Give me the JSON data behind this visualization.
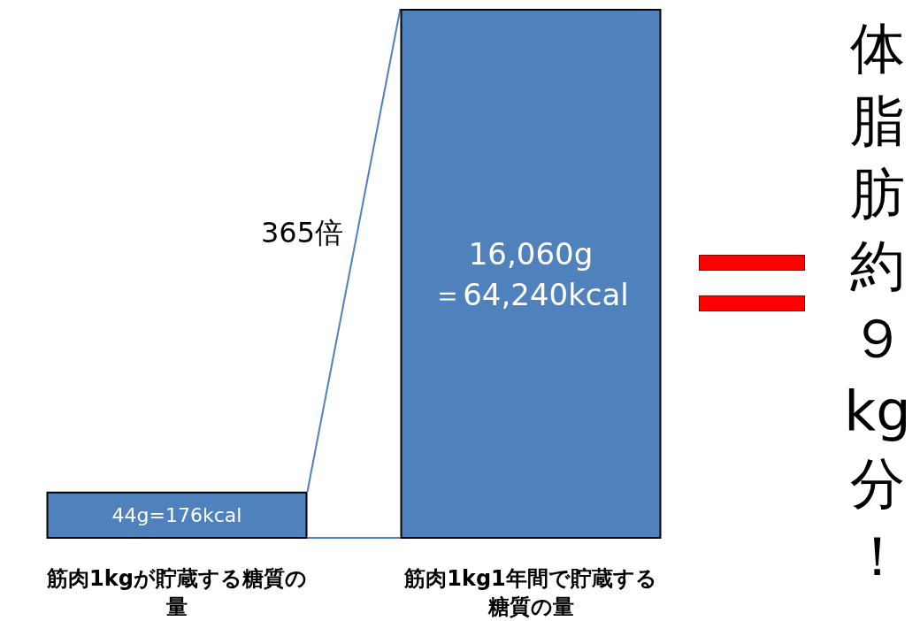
{
  "chart_data": {
    "type": "bar",
    "log": true,
    "tick_labels": "x",
    "categories": [
      "筋肉1kgが貯蔵する糖質の量",
      "筋肉1kg1年間で貯蔵する糖質の量"
    ],
    "values": [
      44,
      16060
    ],
    "ylim": [
      25,
      16060
    ],
    "value_labels": [
      "44g=176kcal",
      "16,060g\n＝64,240kcal"
    ],
    "color": "#4f81bd",
    "annotations": [
      "365倍",
      "体脂肪約９kg分！"
    ]
  }
}
